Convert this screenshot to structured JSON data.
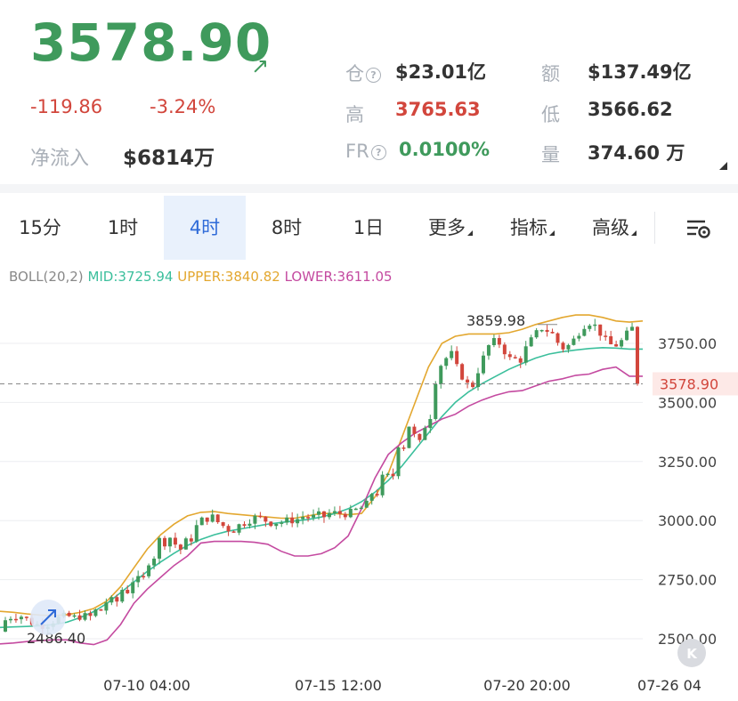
{
  "header": {
    "price": "3578.90",
    "change": "-119.86",
    "change_pct": "-3.24%",
    "net_inflow_label": "净流入",
    "net_inflow_value": "$6814万",
    "stats": {
      "oi_label": "仓",
      "oi_value": "$23.01亿",
      "amount_label": "额",
      "amount_value": "$137.49亿",
      "high_label": "高",
      "high_value": "3765.63",
      "low_label": "低",
      "low_value": "3566.62",
      "fr_label": "FR",
      "fr_value": "0.0100%",
      "vol_label": "量",
      "vol_value": "374.60 万"
    },
    "colors": {
      "up": "#3f9a5c",
      "down": "#d2463c"
    }
  },
  "tabs": [
    {
      "label": "15分",
      "active": false
    },
    {
      "label": "1时",
      "active": false
    },
    {
      "label": "4时",
      "active": true
    },
    {
      "label": "8时",
      "active": false
    },
    {
      "label": "1日",
      "active": false
    },
    {
      "label": "更多",
      "active": false
    },
    {
      "label": "指标",
      "active": false
    },
    {
      "label": "高级",
      "active": false
    }
  ],
  "settings_icon": "chart-settings-icon",
  "indicator": {
    "name": "BOLL(20,2)",
    "mid": "MID:3725.94",
    "upper": "UPPER:3840.82",
    "lower": "LOWER:3611.05",
    "colors": {
      "mid": "#3bbf9c",
      "upper": "#e3a72f",
      "lower": "#c44aa0"
    }
  },
  "chart_data": {
    "type": "candlestick",
    "y_ticks": [
      "3750.00",
      "3500.00",
      "3250.00",
      "3000.00",
      "2750.00",
      "2500.00"
    ],
    "y_tick_values": [
      3750,
      3500,
      3250,
      3000,
      2750,
      2500
    ],
    "x_ticks": [
      "07-10 04:00",
      "07-15 12:00",
      "07-20 20:00",
      "07-26 04"
    ],
    "current_price_label": "3578.90",
    "current_price": 3578.9,
    "max_label": "3859.98",
    "min_label": "2486.40",
    "upper_band": [
      2616,
      2612,
      2605,
      2600,
      2598,
      2602,
      2612,
      2628,
      2660,
      2720,
      2800,
      2880,
      2940,
      2985,
      3020,
      3035,
      3038,
      3030,
      3025,
      3020,
      3015,
      3010,
      3010,
      3020,
      3030,
      3030,
      3025,
      3030,
      3100,
      3200,
      3350,
      3500,
      3650,
      3750,
      3780,
      3790,
      3790,
      3790,
      3795,
      3810,
      3830,
      3845,
      3860,
      3870,
      3870,
      3860,
      3845,
      3840,
      3845
    ],
    "mid_band": [
      2548,
      2550,
      2552,
      2555,
      2560,
      2570,
      2590,
      2615,
      2650,
      2695,
      2740,
      2785,
      2825,
      2862,
      2895,
      2920,
      2940,
      2955,
      2965,
      2975,
      2985,
      2992,
      2998,
      3005,
      3015,
      3030,
      3050,
      3080,
      3120,
      3170,
      3230,
      3300,
      3370,
      3440,
      3500,
      3545,
      3580,
      3610,
      3640,
      3665,
      3688,
      3705,
      3715,
      3722,
      3728,
      3732,
      3730,
      3726,
      3726
    ],
    "lower_band": [
      2478,
      2482,
      2488,
      2492,
      2495,
      2495,
      2482,
      2475,
      2495,
      2560,
      2650,
      2710,
      2760,
      2810,
      2850,
      2905,
      2912,
      2912,
      2912,
      2908,
      2900,
      2870,
      2850,
      2850,
      2860,
      2885,
      2935,
      3050,
      3180,
      3280,
      3330,
      3370,
      3400,
      3430,
      3450,
      3485,
      3510,
      3530,
      3545,
      3550,
      3570,
      3590,
      3600,
      3615,
      3620,
      3640,
      3650,
      3611,
      3611
    ],
    "band_x_range": [
      "07-06",
      "07-26"
    ]
  }
}
